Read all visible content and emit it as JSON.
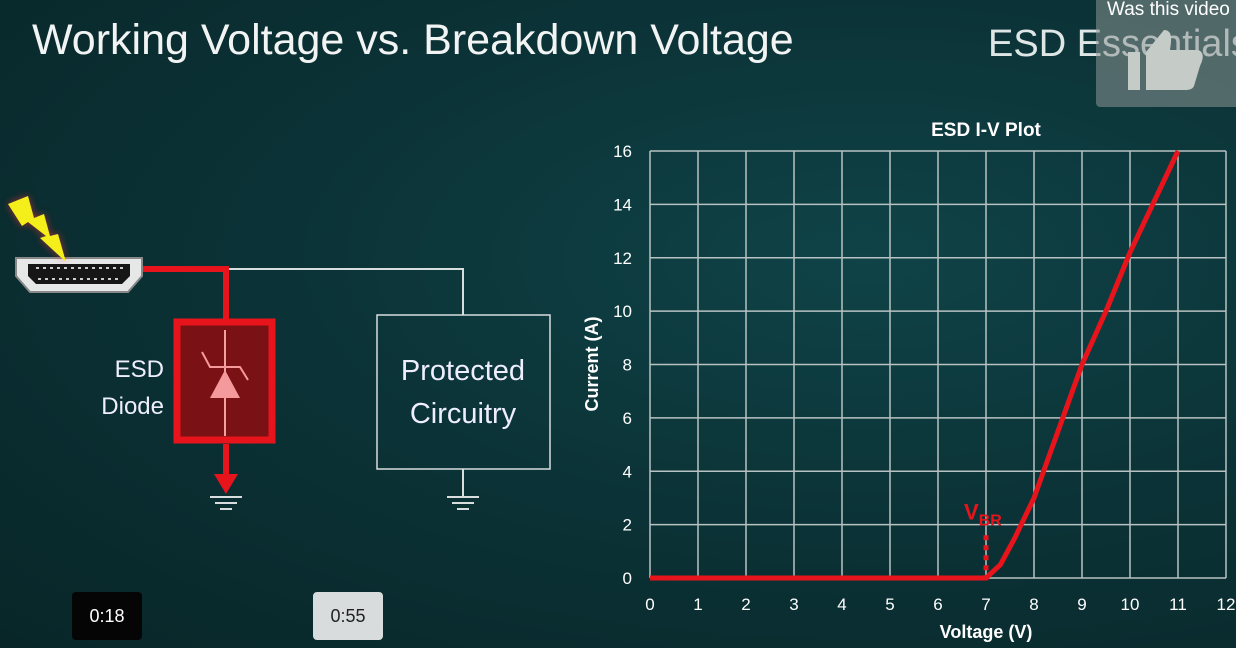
{
  "slide": {
    "title": "Working Voltage vs. Breakdown Voltage",
    "brand": "ESD Essentials"
  },
  "diagram": {
    "diode_label_line1": "ESD",
    "diode_label_line2": "Diode",
    "protected_line1": "Protected",
    "protected_line2": "Circuitry",
    "connector_icon": "hdmi-connector-icon",
    "strike_icon": "lightning-bolt-icon"
  },
  "player": {
    "feedback_question": "Was this video",
    "feedback_icon": "thumbs-up-icon",
    "time_start": "0:18",
    "time_end": "0:55"
  },
  "colors": {
    "accent": "#e8141c",
    "background": "#0b3236",
    "grid": "#b8c2c2"
  },
  "chart_data": {
    "type": "line",
    "title": "ESD I-V Plot",
    "xlabel": "Voltage (V)",
    "ylabel": "Current (A)",
    "xlim": [
      0,
      12
    ],
    "ylim": [
      0,
      16
    ],
    "xticks": [
      0,
      1,
      2,
      3,
      4,
      5,
      6,
      7,
      8,
      9,
      10,
      11,
      12
    ],
    "yticks": [
      0,
      2,
      4,
      6,
      8,
      10,
      12,
      14,
      16
    ],
    "grid": true,
    "annotation": {
      "label": "V",
      "subscript": "BR",
      "x": 7
    },
    "series": [
      {
        "color": "#e8141c",
        "x": [
          0,
          7,
          7.3,
          7.6,
          8,
          8.5,
          9,
          9.5,
          10,
          10.5,
          11
        ],
        "y": [
          0,
          0,
          0.5,
          1.5,
          3,
          5.5,
          8,
          10,
          12.2,
          14.1,
          16
        ]
      }
    ]
  }
}
